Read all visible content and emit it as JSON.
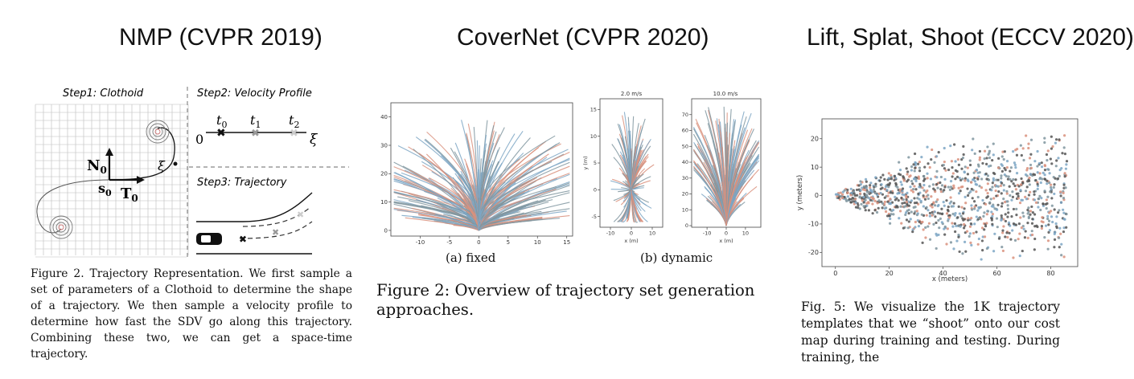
{
  "panels": [
    {
      "title": "NMP (CVPR 2019)"
    },
    {
      "title": "CoverNet (CVPR 2020)"
    },
    {
      "title": "Lift, Splat, Shoot (ECCV 2020)"
    }
  ],
  "nmp": {
    "step1": "Step1: Clothoid",
    "step2": "Step2: Velocity Profile",
    "step3": "Step3: Trajectory",
    "labels": {
      "n0": "N",
      "n0_sub": "0",
      "t0": "T",
      "t0_sub": "0",
      "s0": "s",
      "s0_sub": "0",
      "xi": "ξ",
      "zero": "0",
      "ta": "t",
      "ta_sub": "0",
      "tb": "t",
      "tb_sub": "1",
      "tc": "t",
      "tc_sub": "2",
      "xi_axis": "ξ"
    },
    "caption": "Figure 2. Trajectory Representation. We first sample a set of parameters of a Clothoid to determine the shape of a trajectory. We then sample a velocity profile to determine how fast the SDV go along this trajectory. Combining these two, we can get a space-time trajectory."
  },
  "covernet": {
    "sub_a": "(a) fixed",
    "sub_b": "(b) dynamic",
    "caption": "Figure 2: Overview of trajectory set generation approaches.",
    "colors": {
      "gray": "#7f959f",
      "salmon": "#d9917c",
      "blue": "#7da6c4"
    }
  },
  "lss": {
    "caption": "Fig. 5: We visualize the 1K trajectory templates that we “shoot” onto our cost map during training and testing. During training, the"
  },
  "chart_data": [
    {
      "type": "line",
      "name_ref": "fixed",
      "xlim": [
        -15,
        16
      ],
      "ylim": [
        -2,
        45
      ],
      "x_ticks": [
        "-10",
        "-5",
        "0",
        "5",
        "10",
        "15"
      ],
      "y_ticks": [
        "0",
        "10",
        "20",
        "30",
        "40"
      ],
      "xlabel": "",
      "ylabel": "",
      "description_of_marks": "fan of trajectories from origin",
      "series": [
        {
          "name": "",
          "values": []
        }
      ]
    },
    {
      "type": "line",
      "title": "2.0 m/s",
      "xlim": [
        -15,
        15
      ],
      "ylim": [
        -7,
        17
      ],
      "x_ticks": [
        "-10",
        "0",
        "10"
      ],
      "y_ticks": [
        "-5",
        "0",
        "5",
        "10",
        "15"
      ],
      "xlabel": "x (m)",
      "ylabel": "y (m)",
      "series": [
        {
          "name": "",
          "values": []
        }
      ]
    },
    {
      "type": "line",
      "title": "10.0 m/s",
      "xlim": [
        -18,
        18
      ],
      "ylim": [
        -1,
        80
      ],
      "x_ticks": [
        "-10",
        "0",
        "10"
      ],
      "y_ticks": [
        "0",
        "10",
        "20",
        "30",
        "40",
        "50",
        "60",
        "70"
      ],
      "xlabel": "x (m)",
      "ylabel": "",
      "series": [
        {
          "name": "",
          "values": []
        }
      ]
    },
    {
      "type": "scatter",
      "xlim": [
        -5,
        90
      ],
      "ylim": [
        -25,
        27
      ],
      "x_ticks": [
        "0",
        "20",
        "40",
        "60",
        "80"
      ],
      "y_ticks": [
        "-20",
        "-10",
        "0",
        "10",
        "20"
      ],
      "xlabel": "x (meters)",
      "ylabel": "y (meters)",
      "series": [
        {
          "name": "",
          "values": []
        }
      ]
    }
  ]
}
